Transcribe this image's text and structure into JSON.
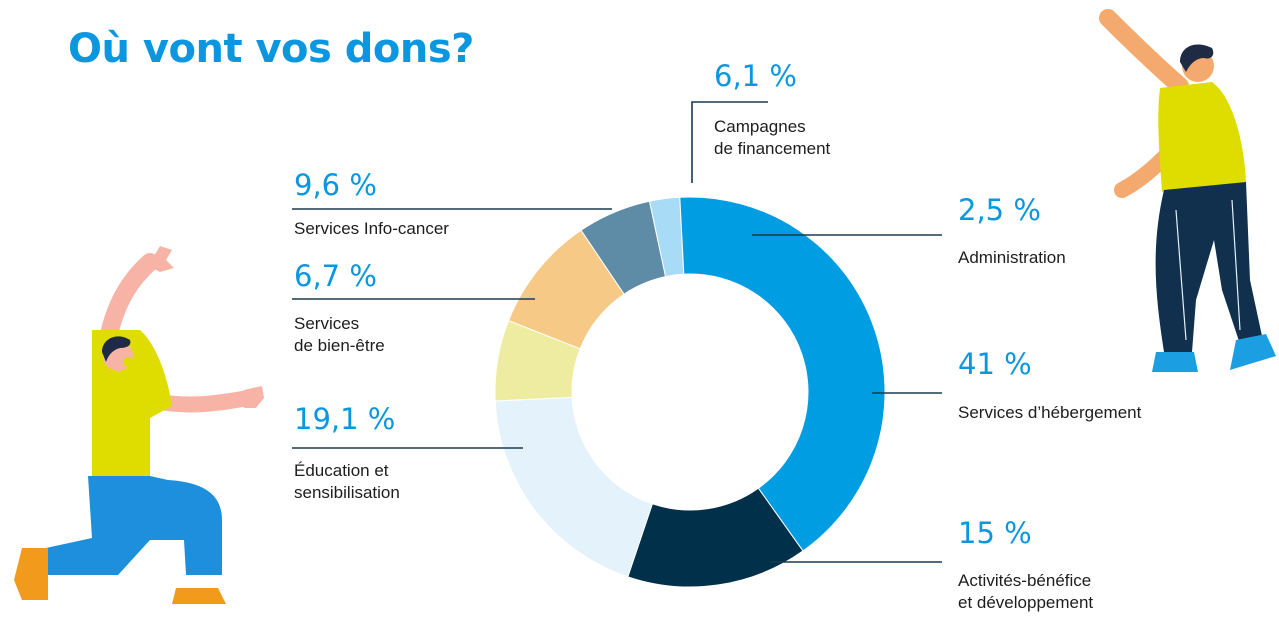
{
  "title": "Où vont vos dons?",
  "colors": {
    "title": "#0a97e0",
    "percent_text": "#0a97e0",
    "label_text": "#1d1d1d",
    "leader_line": "#1e3a4e"
  },
  "chart_data": {
    "type": "pie",
    "variant": "donut",
    "title": "Où vont vos dons?",
    "start_angle_deg": -12,
    "slices": [
      {
        "key": "administration",
        "value": 2.5,
        "value_label": "2,5 %",
        "label": "Administration",
        "color": "#a8dbf6"
      },
      {
        "key": "hebergement",
        "value": 41,
        "value_label": "41 %",
        "label": "Services d’hébergement",
        "color": "#009de3"
      },
      {
        "key": "activites",
        "value": 15,
        "value_label": "15 %",
        "label": "Activités-bénéfice\net développement",
        "color": "#00304a"
      },
      {
        "key": "education",
        "value": 19.1,
        "value_label": "19,1 %",
        "label": "Éducation et\nsensibilisation",
        "color": "#e4f2fc"
      },
      {
        "key": "bien_etre",
        "value": 6.7,
        "value_label": "6,7 %",
        "label": "Services\nde bien-être",
        "color": "#eeeca0"
      },
      {
        "key": "info_cancer",
        "value": 9.6,
        "value_label": "9,6 %",
        "label": "Services Info-cancer",
        "color": "#f6c987"
      },
      {
        "key": "campagnes",
        "value": 6.1,
        "value_label": "6,1 %",
        "label": "Campagnes\nde financement",
        "color": "#5e8ba6"
      }
    ]
  },
  "illustrations": [
    {
      "name": "kneeling-person-illustration",
      "shirt_color": "#dfdc00",
      "pants_color": "#1d8fdc",
      "shoe_color": "#f19a1b"
    },
    {
      "name": "standing-person-illustration",
      "shirt_color": "#dfdc00",
      "pants_color": "#10304d",
      "shoe_color": "#1c9fe2"
    }
  ]
}
